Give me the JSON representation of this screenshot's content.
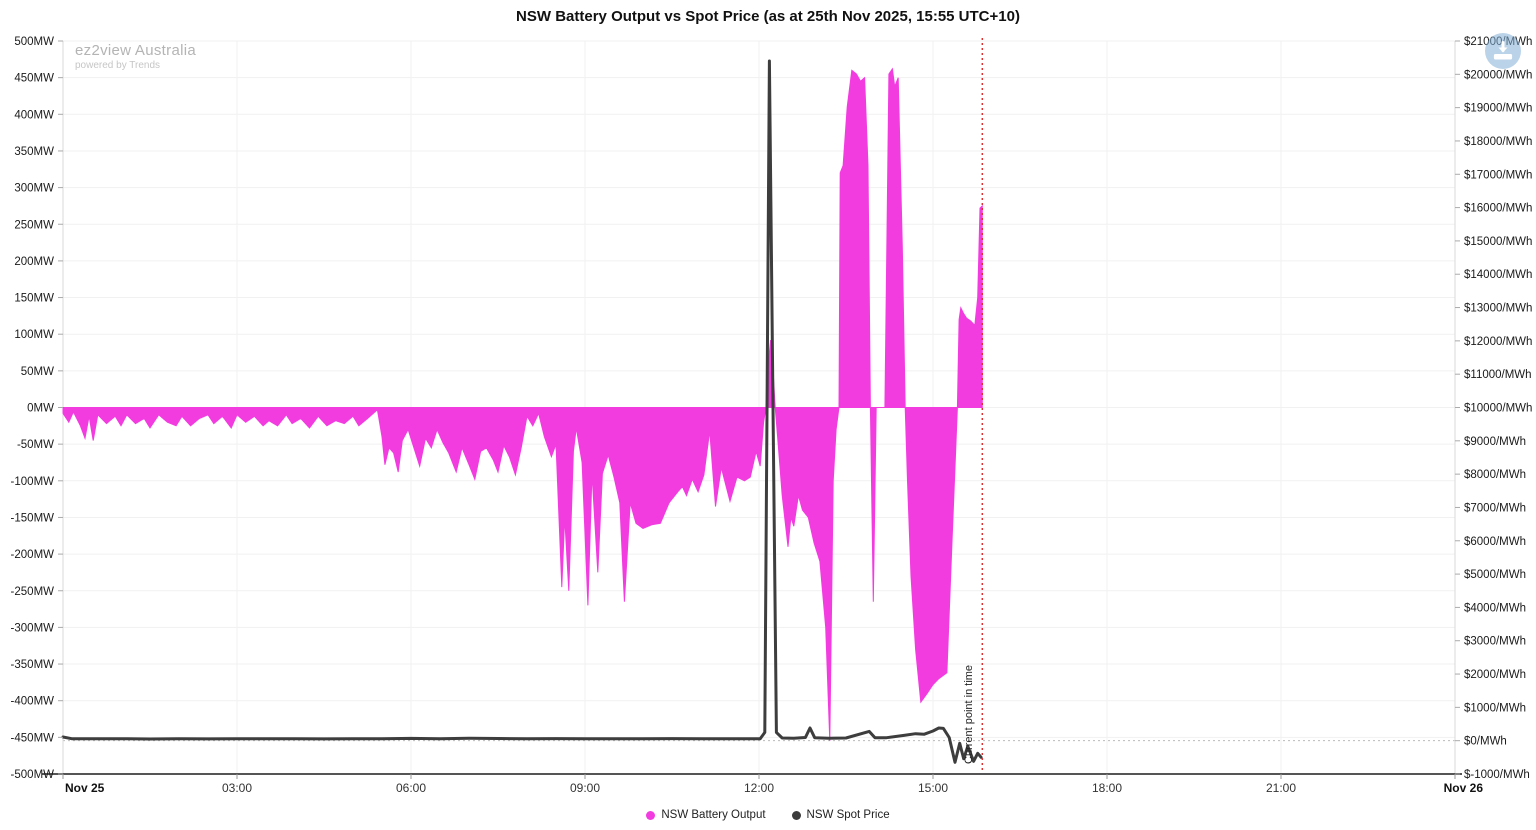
{
  "title": "NSW Battery Output vs Spot Price (as at 25th Nov 2025, 15:55 UTC+10)",
  "watermark": {
    "line1": "ez2view Australia",
    "line2": "powered by Trends"
  },
  "icons": {
    "download": "download-icon"
  },
  "colors": {
    "battery": "#f23ce0",
    "price": "#3d3d3d",
    "current_time_line": "#e03131",
    "grid": "#f1f1f1",
    "axis": "#d9d9d9",
    "bottom_axis": "#555555"
  },
  "chart_data": {
    "type": "line",
    "title": "NSW Battery Output vs Spot Price (as at 25th Nov 2025, 15:55 UTC+10)",
    "legend_position": "bottom",
    "grid": true,
    "x_axis": {
      "unit": "time (UTC+10)",
      "range_hours": [
        0,
        24
      ],
      "ticks": [
        {
          "h": 0,
          "label": "Nov 25",
          "bold": true
        },
        {
          "h": 3,
          "label": "03:00"
        },
        {
          "h": 6,
          "label": "06:00"
        },
        {
          "h": 9,
          "label": "09:00"
        },
        {
          "h": 12,
          "label": "12:00"
        },
        {
          "h": 15,
          "label": "15:00"
        },
        {
          "h": 18,
          "label": "18:00"
        },
        {
          "h": 21,
          "label": "21:00"
        },
        {
          "h": 24,
          "label": "Nov 26",
          "bold": true
        }
      ]
    },
    "left_axis": {
      "min": -500,
      "max": 500,
      "tick_step": 50,
      "labels": [
        "500MW",
        "450MW",
        "400MW",
        "350MW",
        "300MW",
        "250MW",
        "200MW",
        "150MW",
        "100MW",
        "50MW",
        "0MW",
        "-50MW",
        "-100MW",
        "-150MW",
        "-200MW",
        "-250MW",
        "-300MW",
        "-350MW",
        "-400MW",
        "-450MW",
        "-500MW"
      ]
    },
    "right_axis": {
      "min": -1000,
      "max": 21000,
      "tick_step": 1000,
      "labels": [
        "$21000/MWh",
        "$20000/MWh",
        "$19000/MWh",
        "$18000/MWh",
        "$17000/MWh",
        "$16000/MWh",
        "$15000/MWh",
        "$14000/MWh",
        "$13000/MWh",
        "$12000/MWh",
        "$11000/MWh",
        "$10000/MWh",
        "$9000/MWh",
        "$8000/MWh",
        "$7000/MWh",
        "$6000/MWh",
        "$5000/MWh",
        "$4000/MWh",
        "$3000/MWh",
        "$2000/MWh",
        "$1000/MWh",
        "$0/MWh",
        "$-1000/MWh"
      ]
    },
    "current_time": {
      "h": 15.85,
      "label": "Current point in time"
    },
    "series": [
      {
        "name": "NSW Battery Output",
        "type": "area",
        "axis": "left",
        "unit": "MW",
        "color": "#f23ce0",
        "points": [
          [
            0,
            -8
          ],
          [
            0.1,
            -20
          ],
          [
            0.18,
            -6
          ],
          [
            0.3,
            -25
          ],
          [
            0.38,
            -42
          ],
          [
            0.45,
            -12
          ],
          [
            0.52,
            -45
          ],
          [
            0.6,
            -10
          ],
          [
            0.75,
            -22
          ],
          [
            0.9,
            -12
          ],
          [
            1,
            -25
          ],
          [
            1.1,
            -10
          ],
          [
            1.25,
            -22
          ],
          [
            1.4,
            -15
          ],
          [
            1.5,
            -28
          ],
          [
            1.65,
            -10
          ],
          [
            1.8,
            -20
          ],
          [
            1.95,
            -25
          ],
          [
            2.05,
            -12
          ],
          [
            2.2,
            -25
          ],
          [
            2.35,
            -15
          ],
          [
            2.5,
            -10
          ],
          [
            2.6,
            -22
          ],
          [
            2.75,
            -12
          ],
          [
            2.9,
            -28
          ],
          [
            3,
            -10
          ],
          [
            3.15,
            -20
          ],
          [
            3.3,
            -12
          ],
          [
            3.45,
            -25
          ],
          [
            3.55,
            -18
          ],
          [
            3.7,
            -25
          ],
          [
            3.85,
            -10
          ],
          [
            3.95,
            -22
          ],
          [
            4.1,
            -15
          ],
          [
            4.25,
            -28
          ],
          [
            4.4,
            -12
          ],
          [
            4.55,
            -25
          ],
          [
            4.7,
            -18
          ],
          [
            4.85,
            -22
          ],
          [
            5,
            -12
          ],
          [
            5.1,
            -25
          ],
          [
            5.25,
            -15
          ],
          [
            5.35,
            -8
          ],
          [
            5.42,
            -3
          ],
          [
            5.5,
            -40
          ],
          [
            5.55,
            -78
          ],
          [
            5.62,
            -55
          ],
          [
            5.7,
            -62
          ],
          [
            5.78,
            -88
          ],
          [
            5.85,
            -45
          ],
          [
            5.95,
            -30
          ],
          [
            6.05,
            -55
          ],
          [
            6.15,
            -80
          ],
          [
            6.25,
            -42
          ],
          [
            6.35,
            -55
          ],
          [
            6.45,
            -30
          ],
          [
            6.55,
            -48
          ],
          [
            6.65,
            -62
          ],
          [
            6.78,
            -88
          ],
          [
            6.88,
            -55
          ],
          [
            7,
            -78
          ],
          [
            7.1,
            -98
          ],
          [
            7.2,
            -60
          ],
          [
            7.3,
            -55
          ],
          [
            7.42,
            -72
          ],
          [
            7.5,
            -88
          ],
          [
            7.6,
            -52
          ],
          [
            7.7,
            -68
          ],
          [
            7.8,
            -92
          ],
          [
            7.9,
            -55
          ],
          [
            8,
            -12
          ],
          [
            8.1,
            -25
          ],
          [
            8.2,
            -8
          ],
          [
            8.3,
            -40
          ],
          [
            8.42,
            -67
          ],
          [
            8.5,
            -50
          ],
          [
            8.6,
            -245
          ],
          [
            8.65,
            -150
          ],
          [
            8.72,
            -250
          ],
          [
            8.8,
            -60
          ],
          [
            8.85,
            -28
          ],
          [
            8.95,
            -75
          ],
          [
            9.05,
            -270
          ],
          [
            9.12,
            -90
          ],
          [
            9.22,
            -225
          ],
          [
            9.3,
            -90
          ],
          [
            9.4,
            -65
          ],
          [
            9.5,
            -95
          ],
          [
            9.6,
            -130
          ],
          [
            9.68,
            -265
          ],
          [
            9.78,
            -130
          ],
          [
            9.88,
            -158
          ],
          [
            10,
            -165
          ],
          [
            10.15,
            -160
          ],
          [
            10.3,
            -158
          ],
          [
            10.45,
            -130
          ],
          [
            10.6,
            -115
          ],
          [
            10.68,
            -108
          ],
          [
            10.75,
            -120
          ],
          [
            10.85,
            -98
          ],
          [
            10.95,
            -115
          ],
          [
            11.05,
            -92
          ],
          [
            11.15,
            -32
          ],
          [
            11.25,
            -135
          ],
          [
            11.35,
            -82
          ],
          [
            11.5,
            -128
          ],
          [
            11.62,
            -95
          ],
          [
            11.75,
            -100
          ],
          [
            11.85,
            -95
          ],
          [
            11.95,
            -60
          ],
          [
            12.02,
            -80
          ],
          [
            12.08,
            -20
          ],
          [
            12.12,
            0
          ],
          [
            12.16,
            60
          ],
          [
            12.2,
            92
          ],
          [
            12.25,
            40
          ],
          [
            12.28,
            0
          ],
          [
            12.32,
            -40
          ],
          [
            12.4,
            -120
          ],
          [
            12.5,
            -190
          ],
          [
            12.55,
            -150
          ],
          [
            12.6,
            -162
          ],
          [
            12.68,
            -120
          ],
          [
            12.75,
            -140
          ],
          [
            12.85,
            -150
          ],
          [
            12.95,
            -185
          ],
          [
            13.05,
            -210
          ],
          [
            13.15,
            -300
          ],
          [
            13.22,
            -455
          ],
          [
            13.28,
            -100
          ],
          [
            13.33,
            -30
          ],
          [
            13.38,
            0
          ],
          [
            13.4,
            320
          ],
          [
            13.45,
            330
          ],
          [
            13.52,
            410
          ],
          [
            13.6,
            460
          ],
          [
            13.68,
            455
          ],
          [
            13.75,
            445
          ],
          [
            13.82,
            450
          ],
          [
            13.88,
            330
          ],
          [
            13.92,
            0
          ],
          [
            13.97,
            -265
          ],
          [
            14.02,
            0
          ],
          [
            14.17,
            0
          ],
          [
            14.24,
            455
          ],
          [
            14.3,
            462
          ],
          [
            14.34,
            438
          ],
          [
            14.4,
            450
          ],
          [
            14.47,
            220
          ],
          [
            14.52,
            0
          ],
          [
            14.56,
            -100
          ],
          [
            14.62,
            -230
          ],
          [
            14.7,
            -330
          ],
          [
            14.79,
            -402
          ],
          [
            14.9,
            -390
          ],
          [
            15,
            -378
          ],
          [
            15.1,
            -370
          ],
          [
            15.24,
            -362
          ],
          [
            15.33,
            -180
          ],
          [
            15.42,
            0
          ],
          [
            15.45,
            120
          ],
          [
            15.48,
            136
          ],
          [
            15.53,
            128
          ],
          [
            15.58,
            122
          ],
          [
            15.65,
            118
          ],
          [
            15.72,
            112
          ],
          [
            15.77,
            150
          ],
          [
            15.81,
            272
          ],
          [
            15.85,
            275
          ]
        ]
      },
      {
        "name": "NSW Spot Price",
        "type": "line",
        "axis": "right",
        "unit": "$/MWh",
        "color": "#3d3d3d",
        "points": [
          [
            0,
            110
          ],
          [
            0.15,
            60
          ],
          [
            0.5,
            55
          ],
          [
            1,
            60
          ],
          [
            1.5,
            50
          ],
          [
            2,
            58
          ],
          [
            2.5,
            52
          ],
          [
            3,
            60
          ],
          [
            3.5,
            55
          ],
          [
            4,
            60
          ],
          [
            4.5,
            52
          ],
          [
            5,
            58
          ],
          [
            5.5,
            55
          ],
          [
            6,
            68
          ],
          [
            6.5,
            60
          ],
          [
            7,
            72
          ],
          [
            7.5,
            65
          ],
          [
            8,
            58
          ],
          [
            8.5,
            62
          ],
          [
            9,
            55
          ],
          [
            9.5,
            60
          ],
          [
            10,
            58
          ],
          [
            10.5,
            62
          ],
          [
            11,
            58
          ],
          [
            11.5,
            60
          ],
          [
            11.8,
            55
          ],
          [
            12.02,
            60
          ],
          [
            12.1,
            250
          ],
          [
            12.18,
            20400
          ],
          [
            12.3,
            250
          ],
          [
            12.4,
            80
          ],
          [
            12.6,
            70
          ],
          [
            12.8,
            95
          ],
          [
            12.88,
            380
          ],
          [
            12.96,
            90
          ],
          [
            13.2,
            75
          ],
          [
            13.5,
            80
          ],
          [
            13.9,
            280
          ],
          [
            14,
            85
          ],
          [
            14.2,
            90
          ],
          [
            14.5,
            160
          ],
          [
            14.7,
            210
          ],
          [
            14.85,
            195
          ],
          [
            15,
            290
          ],
          [
            15.1,
            380
          ],
          [
            15.18,
            370
          ],
          [
            15.28,
            95
          ],
          [
            15.38,
            -650
          ],
          [
            15.46,
            -80
          ],
          [
            15.53,
            -540
          ],
          [
            15.6,
            -170
          ],
          [
            15.7,
            -620
          ],
          [
            15.77,
            -380
          ],
          [
            15.83,
            -500
          ]
        ]
      }
    ]
  }
}
